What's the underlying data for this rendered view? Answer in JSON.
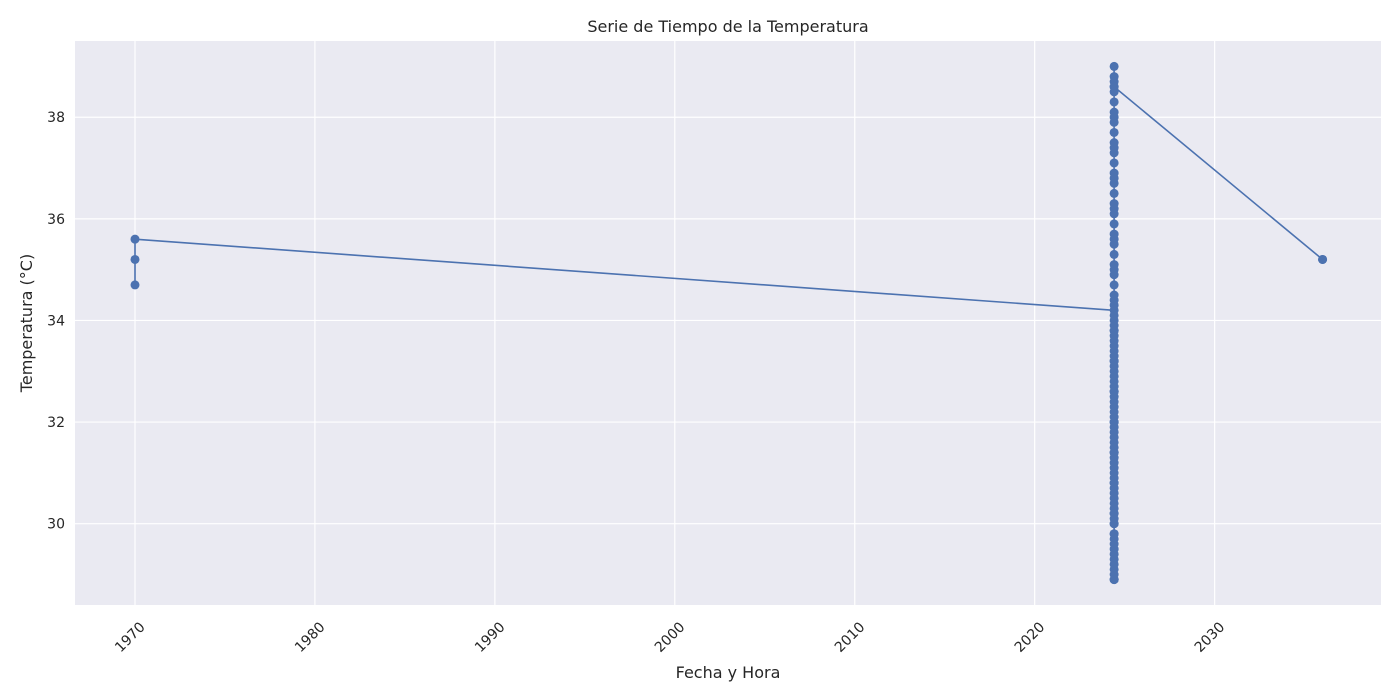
{
  "chart_data": {
    "type": "line",
    "title": "Serie de Tiempo de la Temperatura",
    "xlabel": "Fecha y Hora",
    "ylabel": "Temperatura (°C)",
    "x_axis": "date",
    "xlim": [
      "1966-09-01",
      "2039-04-01"
    ],
    "ylim": [
      28.4,
      39.5
    ],
    "grid": true,
    "xticks": [
      "1970-01-01",
      "1980-01-01",
      "1990-01-01",
      "2000-01-01",
      "2010-01-01",
      "2020-01-01",
      "2030-01-01"
    ],
    "xtick_labels": [
      "1970",
      "1980",
      "1990",
      "2000",
      "2010",
      "2020",
      "2030"
    ],
    "yticks": [
      30,
      32,
      34,
      36,
      38
    ],
    "ytick_labels": [
      "30",
      "32",
      "34",
      "36",
      "38"
    ],
    "colors": {
      "series": "#4c72b0",
      "plot_bg": "#eaeaf2",
      "grid": "#ffffff"
    },
    "series": [
      {
        "x": [
          "1970-01-01",
          "1970-01-01",
          "1970-01-01",
          "2024-06-01",
          "2024-06-01",
          "2024-06-01",
          "2024-06-01",
          "2024-06-01",
          "2024-06-01",
          "2024-06-01",
          "2024-06-01",
          "2024-06-01",
          "2024-06-01",
          "2024-06-01",
          "2024-06-01",
          "2024-06-01",
          "2024-06-01",
          "2024-06-01",
          "2024-06-01",
          "2024-06-01",
          "2024-06-01",
          "2024-06-01",
          "2024-06-01",
          "2024-06-01",
          "2024-06-01",
          "2024-06-01",
          "2024-06-01",
          "2024-06-01",
          "2024-06-01",
          "2024-06-01",
          "2024-06-01",
          "2024-06-01",
          "2024-06-01",
          "2024-06-01",
          "2024-06-01",
          "2024-06-01",
          "2024-06-01",
          "2024-06-01",
          "2024-06-01",
          "2024-06-01",
          "2024-06-01",
          "2024-06-01",
          "2024-06-01",
          "2024-06-01",
          "2024-06-01",
          "2024-06-01",
          "2024-06-01",
          "2024-06-01",
          "2024-06-01",
          "2024-06-01",
          "2024-06-01",
          "2024-06-01",
          "2024-06-01",
          "2024-06-01",
          "2024-06-01",
          "2024-06-01",
          "2024-06-01",
          "2024-06-01",
          "2024-06-01",
          "2024-06-01",
          "2024-06-01",
          "2024-06-01",
          "2024-06-01",
          "2024-06-01",
          "2024-06-01",
          "2024-06-01",
          "2024-06-01",
          "2024-06-01",
          "2024-06-01",
          "2024-06-01",
          "2024-06-01",
          "2024-06-01",
          "2024-06-01",
          "2024-06-01",
          "2024-06-01",
          "2024-06-01",
          "2024-06-01",
          "2024-06-01",
          "2024-06-01",
          "2024-06-01",
          "2024-06-01",
          "2024-06-01",
          "2024-06-01",
          "2024-06-01",
          "2024-06-01",
          "2024-06-01",
          "2024-06-01",
          "2024-06-01",
          "2024-06-01",
          "2024-06-01",
          "2024-06-01",
          "2024-06-01",
          "2024-06-01",
          "2024-06-01",
          "2024-06-01",
          "2024-06-01",
          "2024-06-01",
          "2024-06-01",
          "2024-06-01",
          "2024-06-01",
          "2036-01-01",
          "2036-01-01"
        ],
        "values": [
          34.7,
          35.2,
          35.6,
          34.2,
          34.0,
          33.8,
          33.6,
          33.4,
          33.2,
          33.0,
          32.8,
          32.6,
          32.4,
          32.2,
          32.0,
          31.8,
          31.6,
          31.4,
          31.2,
          31.0,
          30.8,
          30.6,
          30.4,
          30.2,
          30.0,
          29.8,
          29.5,
          29.2,
          28.9,
          29.0,
          29.3,
          29.7,
          30.0,
          30.3,
          30.7,
          31.1,
          31.5,
          31.9,
          32.3,
          32.7,
          33.1,
          33.5,
          33.9,
          34.3,
          34.7,
          35.1,
          35.5,
          35.9,
          36.3,
          36.7,
          37.1,
          37.5,
          37.9,
          38.3,
          38.7,
          39.0,
          38.8,
          38.5,
          38.1,
          37.7,
          37.3,
          36.9,
          36.5,
          36.1,
          35.7,
          35.3,
          34.9,
          34.5,
          34.1,
          33.7,
          33.3,
          32.9,
          32.5,
          32.1,
          31.7,
          31.3,
          30.9,
          30.5,
          30.1,
          29.8,
          29.4,
          29.1,
          28.9,
          29.6,
          30.2,
          30.8,
          31.4,
          32.0,
          32.6,
          33.2,
          33.8,
          34.4,
          35.0,
          35.6,
          36.2,
          36.8,
          37.4,
          38.0,
          38.6,
          38.6,
          35.2,
          35.2
        ]
      }
    ]
  }
}
